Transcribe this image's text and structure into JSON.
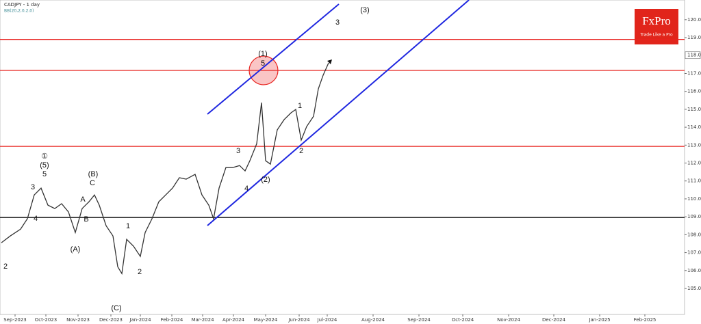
{
  "chart_data": {
    "type": "line",
    "title": "CADJPY - 1 day",
    "subtitle": "BB(20,2,0,2,0)",
    "brand": {
      "name": "FxPro",
      "tagline": "Trade Like a Pro"
    },
    "xlim": [
      0,
      500
    ],
    "ylim": [
      103.55,
      121.1
    ],
    "xticks": [
      {
        "value": 11,
        "label": "Sep-2023"
      },
      {
        "value": 33.5,
        "label": "Oct-2023"
      },
      {
        "value": 57,
        "label": "Nov-2023"
      },
      {
        "value": 81,
        "label": "Dec-2023"
      },
      {
        "value": 102.5,
        "label": "Jan-2024"
      },
      {
        "value": 125.5,
        "label": "Feb-2024"
      },
      {
        "value": 148,
        "label": "Mar-2024"
      },
      {
        "value": 170.5,
        "label": "Apr-2024"
      },
      {
        "value": 194,
        "label": "May-2024"
      },
      {
        "value": 218.5,
        "label": "Jun-2024"
      },
      {
        "value": 239,
        "label": "Jul-2024"
      },
      {
        "value": 272.5,
        "label": "Aug-2024"
      },
      {
        "value": 306,
        "label": "Sep-2024"
      },
      {
        "value": 338,
        "label": "Oct-2024"
      },
      {
        "value": 371.5,
        "label": "Nov-2024"
      },
      {
        "value": 404.5,
        "label": "Dec-2024"
      },
      {
        "value": 438,
        "label": "Jan-2025"
      },
      {
        "value": 471,
        "label": "Feb-2025"
      }
    ],
    "yticks": [
      {
        "value": 105,
        "label": "105.00"
      },
      {
        "value": 106,
        "label": "106.00"
      },
      {
        "value": 107,
        "label": "107.00"
      },
      {
        "value": 108,
        "label": "108.00"
      },
      {
        "value": 109,
        "label": "109.00"
      },
      {
        "value": 110,
        "label": "110.00"
      },
      {
        "value": 111,
        "label": "111.00"
      },
      {
        "value": 112,
        "label": "112.00"
      },
      {
        "value": 113,
        "label": "113.00"
      },
      {
        "value": 114,
        "label": "114.00"
      },
      {
        "value": 115,
        "label": "115.00"
      },
      {
        "value": 116,
        "label": "116.00"
      },
      {
        "value": 117,
        "label": "117.00"
      },
      {
        "value": 119,
        "label": "119.00"
      },
      {
        "value": 120,
        "label": "120.00"
      }
    ],
    "last_price": {
      "value": 118.02,
      "label": "118.02"
    },
    "series": [
      {
        "name": "CADJPY",
        "color": "#333333",
        "x": [
          1,
          7.5,
          15,
          20,
          25,
          30,
          35,
          40,
          45,
          50,
          55,
          60,
          65,
          69,
          72.5,
          77.5,
          82.5,
          86,
          89,
          92.5,
          97.5,
          102.5,
          106,
          111,
          116,
          121,
          126,
          131,
          136,
          142.5,
          147.5,
          152.5,
          156,
          160,
          165,
          170,
          175,
          179,
          182.5,
          187.5,
          191,
          194,
          197.5,
          202.5,
          207.5,
          212.5,
          216,
          220,
          224,
          229,
          232.5,
          236,
          240
        ],
        "values": [
          107.55,
          107.93,
          108.31,
          108.89,
          110.22,
          110.6,
          109.65,
          109.46,
          109.73,
          109.27,
          108.12,
          109.46,
          109.84,
          110.22,
          109.65,
          108.5,
          107.93,
          106.21,
          105.83,
          107.74,
          107.36,
          106.79,
          108.12,
          108.89,
          109.84,
          110.22,
          110.6,
          111.18,
          111.1,
          111.37,
          110.22,
          109.65,
          108.89,
          110.6,
          111.75,
          111.75,
          111.86,
          111.56,
          112.13,
          113.08,
          115.37,
          112.13,
          111.94,
          113.85,
          114.42,
          114.8,
          114.99,
          113.28,
          114.04,
          114.61,
          116.14,
          116.9,
          117.59
        ]
      }
    ],
    "levels": [
      {
        "value": 118.9,
        "color": "#e8231f"
      },
      {
        "value": 117.17,
        "color": "#e8231f"
      },
      {
        "value": 112.93,
        "color": "#e8231f"
      },
      {
        "value": 108.96,
        "color": "#111111"
      }
    ],
    "channels": [
      {
        "color": "#1f27e0",
        "x": [
          151.5,
          247.5
        ],
        "values": [
          114.73,
          120.87
        ]
      },
      {
        "color": "#1f27e0",
        "x": [
          151.5,
          342.5
        ],
        "values": [
          108.51,
          121.1
        ]
      }
    ],
    "annotations": [
      {
        "text": "2",
        "x": 4,
        "y": 106.21
      },
      {
        "text": "4",
        "x": 26,
        "y": 108.89
      },
      {
        "text": "3",
        "x": 24,
        "y": 110.64
      },
      {
        "text": "5",
        "x": 32.5,
        "y": 111.37
      },
      {
        "text": "(5)",
        "x": 32.5,
        "y": 111.86
      },
      {
        "text": "①",
        "x": 32.5,
        "y": 112.36
      },
      {
        "text": "(A)",
        "x": 55,
        "y": 107.17
      },
      {
        "text": "B",
        "x": 63,
        "y": 108.85
      },
      {
        "text": "A",
        "x": 60.5,
        "y": 109.95
      },
      {
        "text": "C",
        "x": 67.5,
        "y": 110.87
      },
      {
        "text": "(B)",
        "x": 68,
        "y": 111.37
      },
      {
        "text": "(C)",
        "x": 85,
        "y": 103.89
      },
      {
        "text": "1",
        "x": 93.5,
        "y": 108.47
      },
      {
        "text": "2",
        "x": 102,
        "y": 105.91
      },
      {
        "text": "4",
        "x": 180,
        "y": 110.57
      },
      {
        "text": "3",
        "x": 174,
        "y": 112.66
      },
      {
        "text": "(2)",
        "x": 194,
        "y": 111.06
      },
      {
        "text": "(1)",
        "x": 192,
        "y": 118.08
      },
      {
        "text": "5",
        "x": 192,
        "y": 117.55
      },
      {
        "text": "1",
        "x": 219,
        "y": 115.18
      },
      {
        "text": "2",
        "x": 220,
        "y": 112.66
      },
      {
        "text": "3",
        "x": 246.5,
        "y": 119.84
      },
      {
        "text": "(3)",
        "x": 266.5,
        "y": 120.53
      }
    ]
  }
}
